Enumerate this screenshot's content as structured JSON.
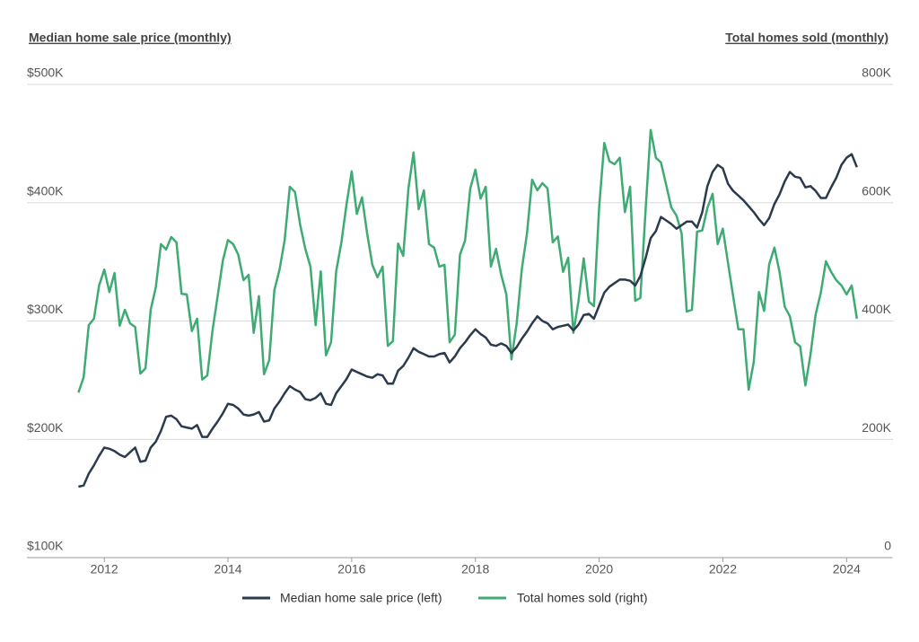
{
  "chart_data": {
    "type": "line",
    "y_label": "Median home sale price (monthly)",
    "y2_label": "Total homes sold (monthly)",
    "x": [
      "2011-08",
      "2011-09",
      "2011-10",
      "2011-11",
      "2011-12",
      "2012-01",
      "2012-02",
      "2012-03",
      "2012-04",
      "2012-05",
      "2012-06",
      "2012-07",
      "2012-08",
      "2012-09",
      "2012-10",
      "2012-11",
      "2012-12",
      "2013-01",
      "2013-02",
      "2013-03",
      "2013-04",
      "2013-05",
      "2013-06",
      "2013-07",
      "2013-08",
      "2013-09",
      "2013-10",
      "2013-11",
      "2013-12",
      "2014-01",
      "2014-02",
      "2014-03",
      "2014-04",
      "2014-05",
      "2014-06",
      "2014-07",
      "2014-08",
      "2014-09",
      "2014-10",
      "2014-11",
      "2014-12",
      "2015-01",
      "2015-02",
      "2015-03",
      "2015-04",
      "2015-05",
      "2015-06",
      "2015-07",
      "2015-08",
      "2015-09",
      "2015-10",
      "2015-11",
      "2015-12",
      "2016-01",
      "2016-02",
      "2016-03",
      "2016-04",
      "2016-05",
      "2016-06",
      "2016-07",
      "2016-08",
      "2016-09",
      "2016-10",
      "2016-11",
      "2016-12",
      "2017-01",
      "2017-02",
      "2017-03",
      "2017-04",
      "2017-05",
      "2017-06",
      "2017-07",
      "2017-08",
      "2017-09",
      "2017-10",
      "2017-11",
      "2017-12",
      "2018-01",
      "2018-02",
      "2018-03",
      "2018-04",
      "2018-05",
      "2018-06",
      "2018-07",
      "2018-08",
      "2018-09",
      "2018-10",
      "2018-11",
      "2018-12",
      "2019-01",
      "2019-02",
      "2019-03",
      "2019-04",
      "2019-05",
      "2019-06",
      "2019-07",
      "2019-08",
      "2019-09",
      "2019-10",
      "2019-11",
      "2019-12",
      "2020-01",
      "2020-02",
      "2020-03",
      "2020-04",
      "2020-05",
      "2020-06",
      "2020-07",
      "2020-08",
      "2020-09",
      "2020-10",
      "2020-11",
      "2020-12",
      "2021-01",
      "2021-02",
      "2021-03",
      "2021-04",
      "2021-05",
      "2021-06",
      "2021-07",
      "2021-08",
      "2021-09",
      "2021-10",
      "2021-11",
      "2021-12",
      "2022-01",
      "2022-02",
      "2022-03",
      "2022-04",
      "2022-05",
      "2022-06",
      "2022-07",
      "2022-08",
      "2022-09",
      "2022-10",
      "2022-11",
      "2022-12",
      "2023-01",
      "2023-02",
      "2023-03",
      "2023-04",
      "2023-05",
      "2023-06",
      "2023-07",
      "2023-08",
      "2023-09",
      "2023-10",
      "2023-11",
      "2023-12",
      "2024-01",
      "2024-02",
      "2024-03"
    ],
    "series": [
      {
        "name": "Median home sale price (left)",
        "color": "#2b3a4c",
        "axis": "y",
        "values": [
          160000,
          161000,
          171000,
          178000,
          186000,
          193000,
          192000,
          190000,
          187000,
          185000,
          189000,
          193000,
          181000,
          182000,
          193000,
          198000,
          207000,
          219000,
          220000,
          217000,
          211000,
          210000,
          209000,
          212000,
          202000,
          202000,
          209000,
          215000,
          222000,
          230000,
          229000,
          226000,
          221000,
          220000,
          221000,
          223000,
          215000,
          216000,
          226000,
          232000,
          239000,
          245000,
          242000,
          240000,
          234000,
          233000,
          235000,
          239000,
          230000,
          229000,
          239000,
          245000,
          251000,
          259000,
          257000,
          255000,
          253000,
          252000,
          255000,
          254000,
          247000,
          247000,
          258000,
          262000,
          269000,
          277000,
          274000,
          272000,
          270000,
          270000,
          272000,
          273000,
          265000,
          270000,
          277000,
          282000,
          288000,
          293000,
          289000,
          286000,
          280000,
          279000,
          281000,
          279000,
          273000,
          278000,
          285000,
          291000,
          298000,
          304000,
          300000,
          298000,
          293000,
          295000,
          296000,
          297000,
          292000,
          297000,
          305000,
          306000,
          302000,
          313000,
          324000,
          329000,
          332000,
          335000,
          335000,
          334000,
          330000,
          338000,
          353000,
          370000,
          376000,
          388000,
          385000,
          382000,
          378000,
          381000,
          384000,
          384000,
          379000,
          392000,
          414000,
          426000,
          432000,
          429000,
          416000,
          410000,
          406000,
          402000,
          397000,
          392000,
          386000,
          381000,
          387000,
          399000,
          407000,
          418000,
          426000,
          422000,
          421000,
          413000,
          414000,
          410000,
          404000,
          404000,
          413000,
          421000,
          432000,
          438000,
          441000,
          430000
        ]
      },
      {
        "name": "Total homes sold (right)",
        "color": "#3fab74",
        "axis": "y2",
        "values": [
          279000,
          305000,
          393000,
          404000,
          460000,
          487000,
          449000,
          481000,
          392000,
          419000,
          396000,
          390000,
          311000,
          320000,
          419000,
          457000,
          530000,
          521000,
          542000,
          533000,
          446000,
          445000,
          383000,
          404000,
          301000,
          308000,
          384000,
          442000,
          502000,
          537000,
          530000,
          512000,
          469000,
          478000,
          380000,
          442000,
          310000,
          334000,
          452000,
          487000,
          537000,
          627000,
          618000,
          563000,
          522000,
          492000,
          393000,
          484000,
          342000,
          364000,
          484000,
          533000,
          597000,
          653000,
          581000,
          609000,
          548000,
          495000,
          474000,
          492000,
          358000,
          366000,
          531000,
          510000,
          624000,
          685000,
          589000,
          621000,
          530000,
          524000,
          492000,
          495000,
          364000,
          377000,
          512000,
          536000,
          624000,
          656000,
          607000,
          627000,
          492000,
          522000,
          478000,
          445000,
          335000,
          396000,
          487000,
          548000,
          639000,
          621000,
          633000,
          624000,
          533000,
          543000,
          483000,
          507000,
          380000,
          434000,
          506000,
          433000,
          425000,
          592000,
          701000,
          670000,
          665000,
          676000,
          584000,
          627000,
          434000,
          439000,
          586000,
          723000,
          676000,
          668000,
          630000,
          592000,
          578000,
          548000,
          416000,
          419000,
          551000,
          553000,
          591000,
          615000,
          530000,
          556000,
          498000,
          442000,
          386000,
          386000,
          284000,
          331000,
          449000,
          417000,
          496000,
          524000,
          483000,
          424000,
          408000,
          364000,
          357000,
          291000,
          343000,
          411000,
          448000,
          501000,
          483000,
          469000,
          460000,
          445000,
          460000,
          404000
        ]
      }
    ],
    "xlim": [
      "2010-10",
      "2024-10"
    ],
    "xticks": [
      {
        "value": "2012-01",
        "label": "2012"
      },
      {
        "value": "2014-01",
        "label": "2014"
      },
      {
        "value": "2016-01",
        "label": "2016"
      },
      {
        "value": "2018-01",
        "label": "2018"
      },
      {
        "value": "2020-01",
        "label": "2020"
      },
      {
        "value": "2022-01",
        "label": "2022"
      },
      {
        "value": "2024-01",
        "label": "2024"
      }
    ],
    "ylim": [
      100000,
      500000
    ],
    "yticks": [
      {
        "value": 100000,
        "label": "$100K"
      },
      {
        "value": 200000,
        "label": "$200K"
      },
      {
        "value": 300000,
        "label": "$300K"
      },
      {
        "value": 400000,
        "label": "$400K"
      },
      {
        "value": 500000,
        "label": "$500K"
      }
    ],
    "y2lim": [
      0,
      800000
    ],
    "y2ticks": [
      0,
      {
        "value": 200000,
        "label": "200K"
      },
      {
        "value": 400000,
        "label": "400K"
      },
      {
        "value": 600000,
        "label": "600K"
      },
      {
        "value": 800000,
        "label": "800K"
      }
    ],
    "grid": true,
    "legend": "bottom"
  }
}
